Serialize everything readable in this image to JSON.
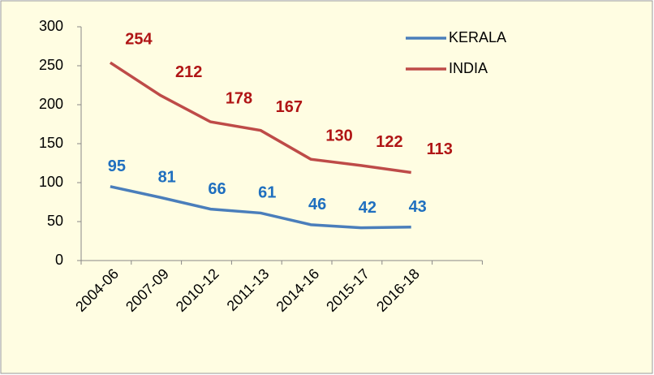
{
  "chart_data": {
    "type": "line",
    "categories": [
      "2004-06",
      "2007-09",
      "2010-12",
      "2011-13",
      "2014-16",
      "2015-17",
      "2016-18"
    ],
    "series": [
      {
        "name": "KERALA",
        "color": "#4a7ebb",
        "label_color": "#1f6fbf",
        "values": [
          95,
          81,
          66,
          61,
          46,
          42,
          43
        ]
      },
      {
        "name": "INDIA",
        "color": "#be4b48",
        "label_color": "#b01515",
        "values": [
          254,
          212,
          178,
          167,
          130,
          122,
          113
        ]
      }
    ],
    "ylim": [
      0,
      300
    ],
    "yticks": [
      0,
      50,
      100,
      150,
      200,
      250,
      300
    ],
    "legend": "top-right",
    "data_labels": true
  }
}
